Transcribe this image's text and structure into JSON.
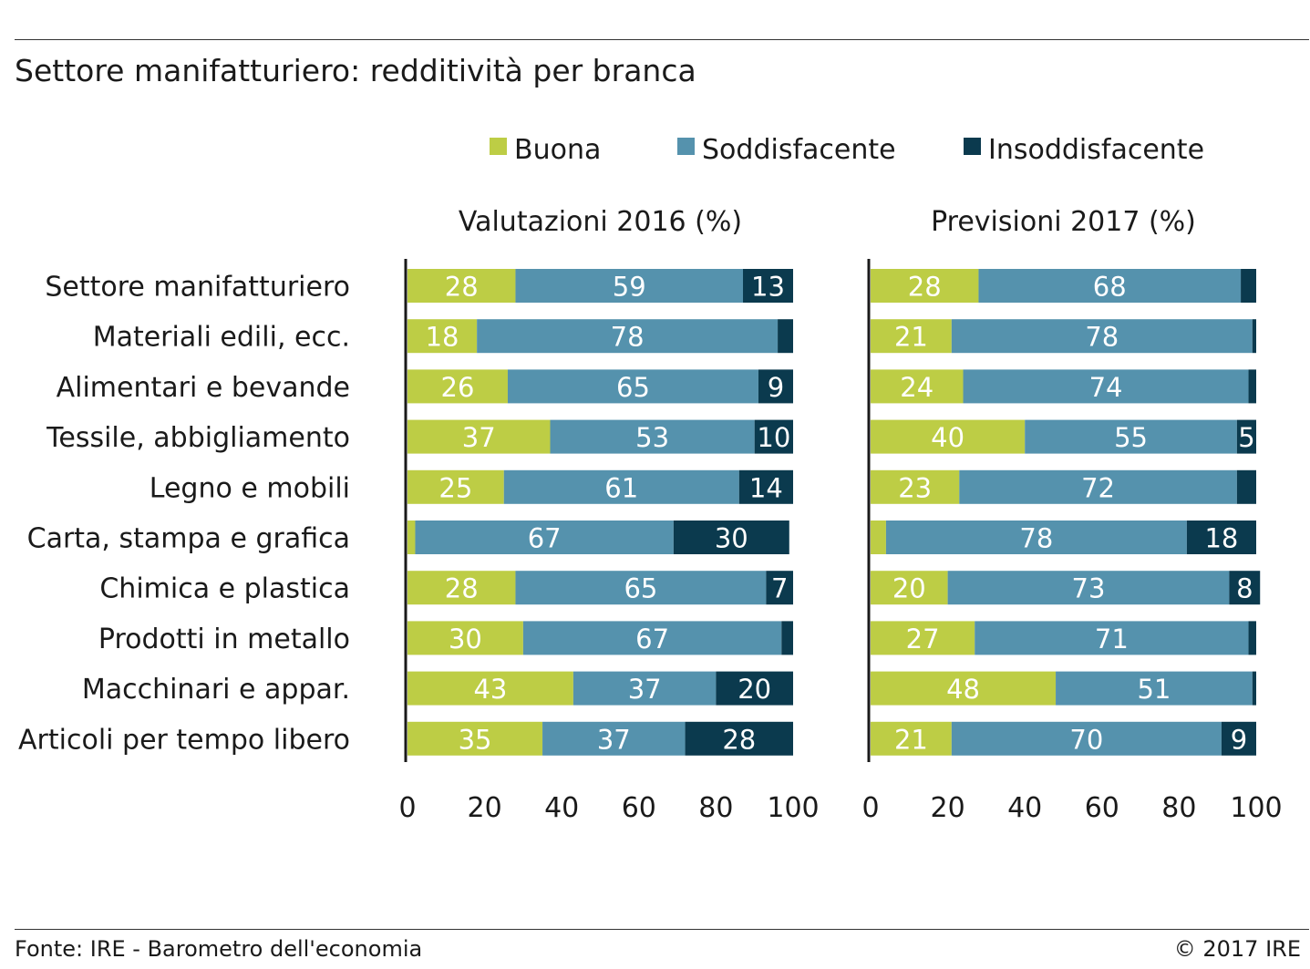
{
  "header": {
    "title": "Settore manifatturiero: redditività per branca"
  },
  "footer": {
    "source": "Fonte: IRE - Barometro dell'economia",
    "copyright": "© 2017 IRE"
  },
  "colors": {
    "buona": "#bdcd45",
    "soddisfacente": "#5592ad",
    "insoddisfacente": "#0b3a4e",
    "label_light": "#ffffff",
    "label_dark": "#0b2a3a"
  },
  "chart_data": {
    "type": "bar",
    "orientation": "horizontal",
    "stacked": true,
    "legend": {
      "placement": "top",
      "entries": [
        "Buona",
        "Soddisfacente",
        "Insoddisfacente"
      ]
    },
    "categories": [
      "Settore manifatturiero",
      "Materiali edili, ecc.",
      "Alimentari e bevande",
      "Tessile, abbigliamento",
      "Legno e mobili",
      "Carta, stampa e grafica",
      "Chimica e plastica",
      "Prodotti in metallo",
      "Macchinari e appar.",
      "Articoli per tempo libero"
    ],
    "xlim": [
      0,
      100
    ],
    "xticks": [
      "0",
      "20",
      "40",
      "60",
      "80",
      "100"
    ],
    "panels": [
      {
        "title": "Valutazioni 2016 (%)",
        "series": [
          {
            "name": "Buona",
            "values": [
              28,
              18,
              26,
              37,
              25,
              2,
              28,
              30,
              43,
              35
            ],
            "labels": [
              "28",
              "18",
              "26",
              "37",
              "25",
              "",
              "28",
              "30",
              "43",
              "35"
            ]
          },
          {
            "name": "Soddisfacente",
            "values": [
              59,
              78,
              65,
              53,
              61,
              67,
              65,
              67,
              37,
              37
            ],
            "labels": [
              "59",
              "78",
              "65",
              "53",
              "61",
              "67",
              "65",
              "67",
              "37",
              "37"
            ]
          },
          {
            "name": "Insoddisfacente",
            "values": [
              13,
              4,
              9,
              10,
              14,
              30,
              7,
              3,
              20,
              28
            ],
            "labels": [
              "13",
              "",
              "9",
              "10",
              "14",
              "30",
              "7",
              "",
              "20",
              "28"
            ]
          }
        ]
      },
      {
        "title": "Previsioni 2017 (%)",
        "series": [
          {
            "name": "Buona",
            "values": [
              28,
              21,
              24,
              40,
              23,
              4,
              20,
              27,
              48,
              21
            ],
            "labels": [
              "28",
              "21",
              "24",
              "40",
              "23",
              "",
              "20",
              "27",
              "48",
              "21"
            ]
          },
          {
            "name": "Soddisfacente",
            "values": [
              68,
              78,
              74,
              55,
              72,
              78,
              73,
              71,
              51,
              70
            ],
            "labels": [
              "68",
              "78",
              "74",
              "55",
              "72",
              "78",
              "73",
              "71",
              "51",
              "70"
            ]
          },
          {
            "name": "Insoddisfacente",
            "values": [
              4,
              1,
              2,
              5,
              5,
              18,
              8,
              2,
              1,
              9
            ],
            "labels": [
              "",
              "",
              "",
              "5",
              "",
              "18",
              "8",
              "",
              "",
              "9"
            ]
          }
        ]
      }
    ]
  }
}
